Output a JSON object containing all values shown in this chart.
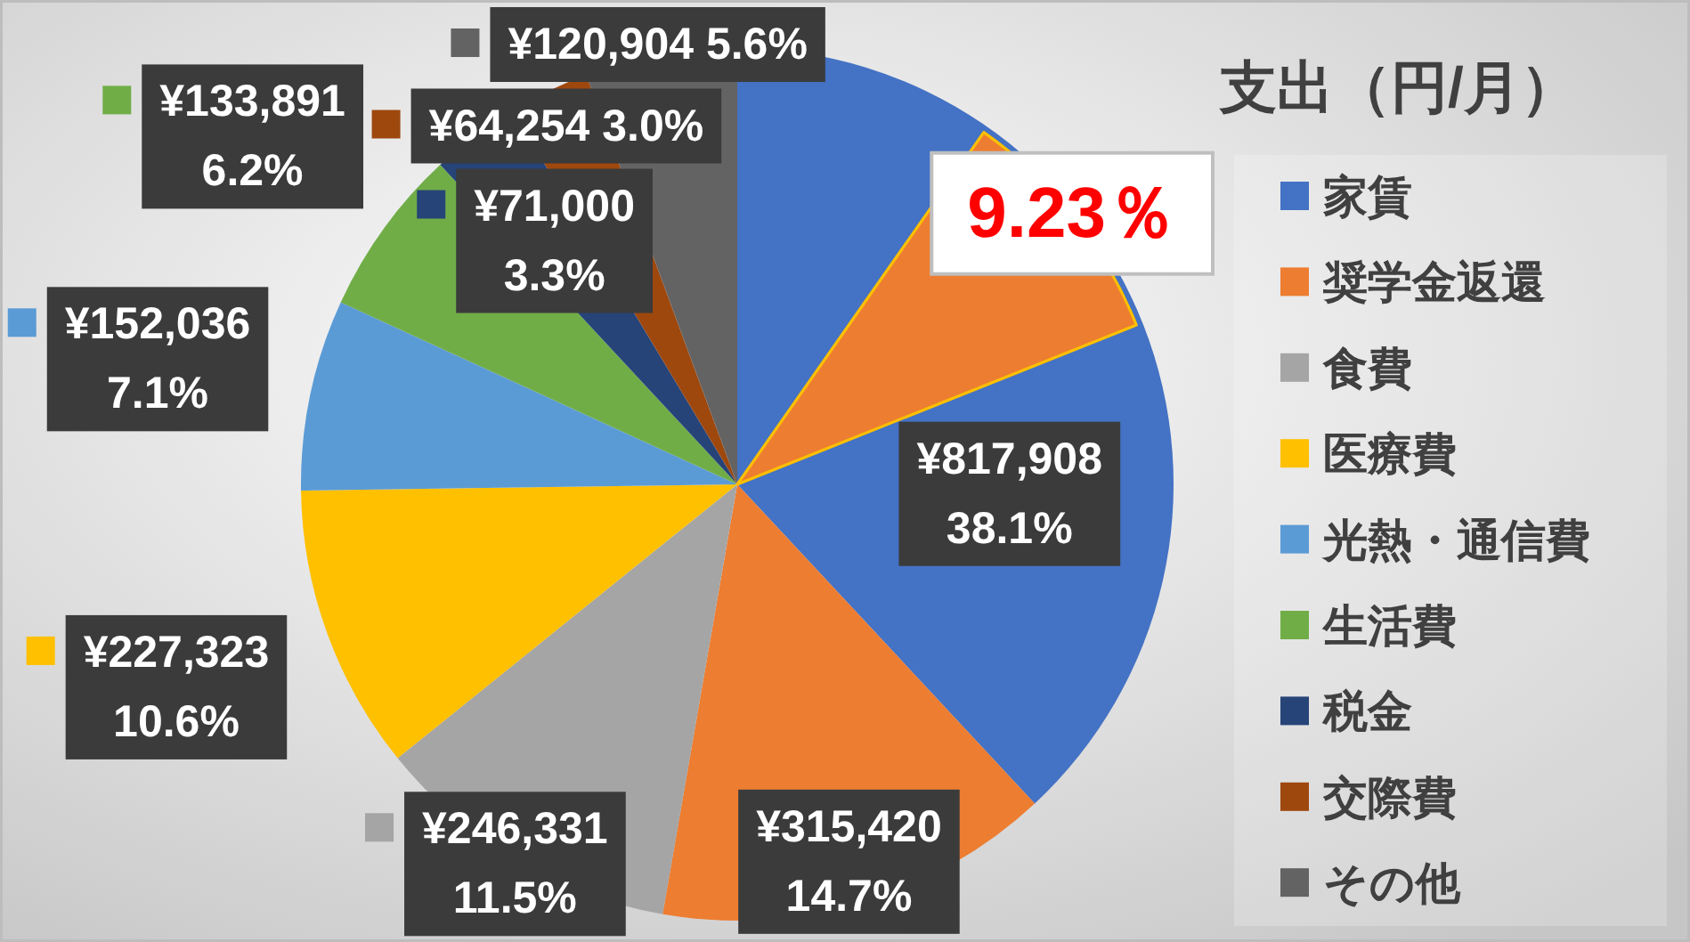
{
  "chart_data": [
    {
      "type": "pie",
      "title": "支出（円/月）",
      "categories": [
        "家賃",
        "奨学金返還",
        "食費",
        "医療費",
        "光熱・通信費",
        "生活費",
        "税金",
        "交際費",
        "その他"
      ],
      "values": [
        817908,
        315420,
        246331,
        227323,
        152036,
        133891,
        71000,
        64254,
        120904
      ],
      "colors": [
        "#4472c4",
        "#ed7d31",
        "#a5a5a5",
        "#ffc000",
        "#5b9bd5",
        "#70ad47",
        "#264478",
        "#9e480e",
        "#636363"
      ],
      "value_labels": [
        "¥817,908\n38.1%",
        "¥315,420\n14.7%",
        "¥246,331\n11.5%",
        "¥227,323\n10.6%",
        "¥152,036\n7.1%",
        "¥133,891\n6.2%",
        "¥71,000\n3.3%",
        "¥64,254 3.0%",
        "¥120,904 5.6%"
      ],
      "legend": "right"
    },
    {
      "type": "other",
      "values": [
        9.23
      ],
      "value_labels": [
        "9.23％"
      ]
    }
  ]
}
